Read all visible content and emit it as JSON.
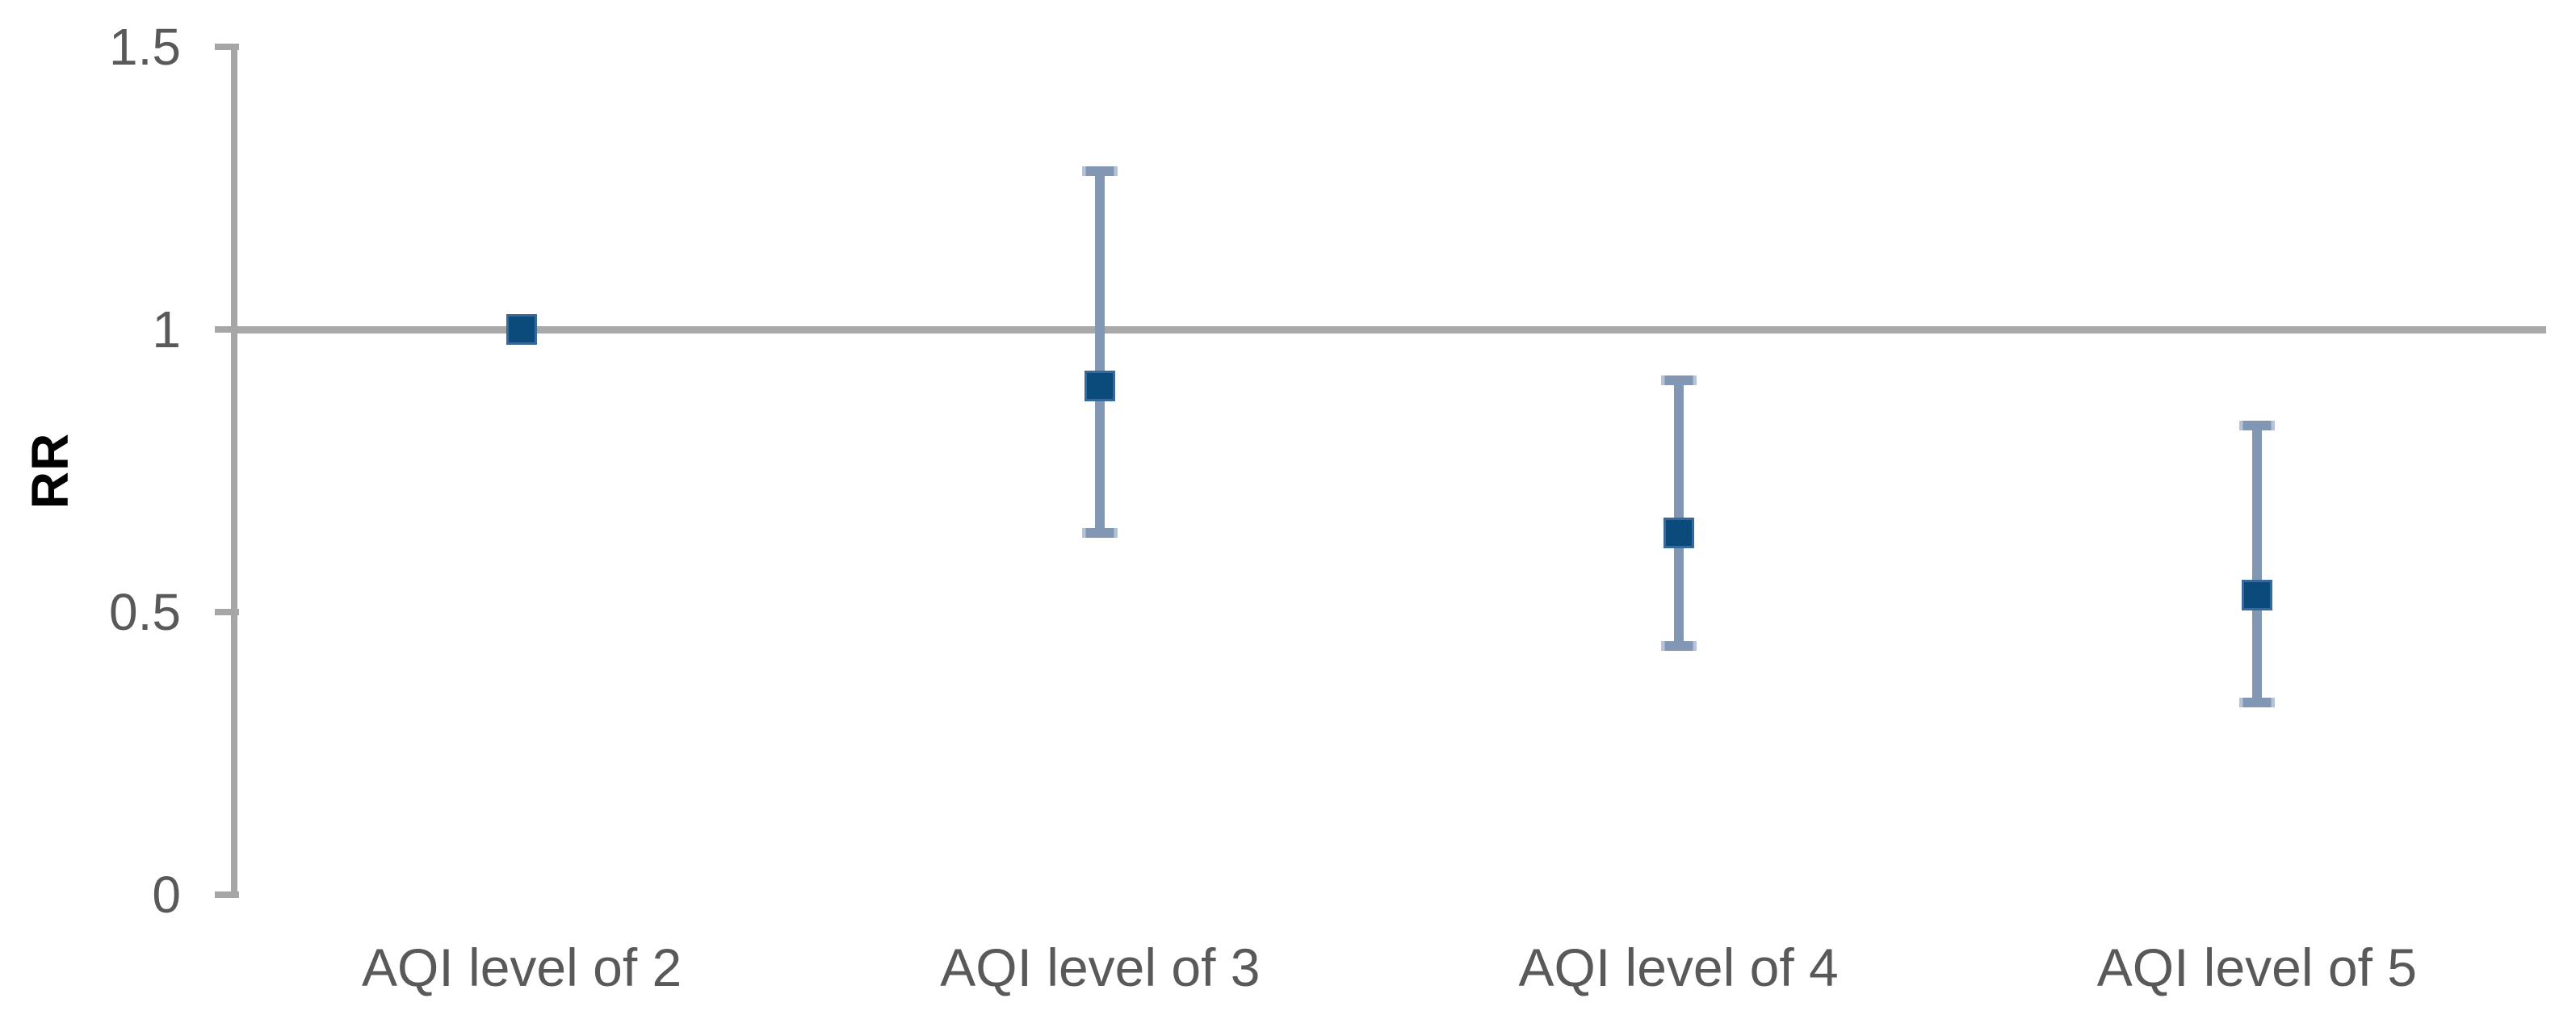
{
  "chart_data": {
    "type": "scatter",
    "subtype": "point-estimate-with-error-bars",
    "title": "",
    "xlabel": "",
    "ylabel": "RR",
    "categories": [
      "AQI level of 2",
      "AQI level of 3",
      "AQI level of 4",
      "AQI level of 5"
    ],
    "points": [
      {
        "category": "AQI level of 2",
        "rr": 1.0,
        "ci_low": null,
        "ci_high": null
      },
      {
        "category": "AQI level of 3",
        "rr": 0.9,
        "ci_low": 0.64,
        "ci_high": 1.28
      },
      {
        "category": "AQI level of 4",
        "rr": 0.64,
        "ci_low": 0.44,
        "ci_high": 0.91
      },
      {
        "category": "AQI level of 5",
        "rr": 0.53,
        "ci_low": 0.34,
        "ci_high": 0.83
      }
    ],
    "y_axis": {
      "min": 0,
      "max": 1.5,
      "tick_values": [
        1.5,
        1,
        0.5,
        0
      ],
      "tick_labels": [
        "1.5",
        "1",
        "0.5",
        "0"
      ]
    },
    "reference_line_y": 1,
    "grid": "single horizontal reference line at RR = 1",
    "legend": "none",
    "colors": {
      "marker_fill": "#0A4B7B",
      "marker_border": "#38699B",
      "whisker": "#8297B4",
      "whisker_cap_end": "#B6C3D7",
      "axis": "#A6A6A6",
      "gridline": "#A9A9A9",
      "text": "#595959"
    }
  }
}
